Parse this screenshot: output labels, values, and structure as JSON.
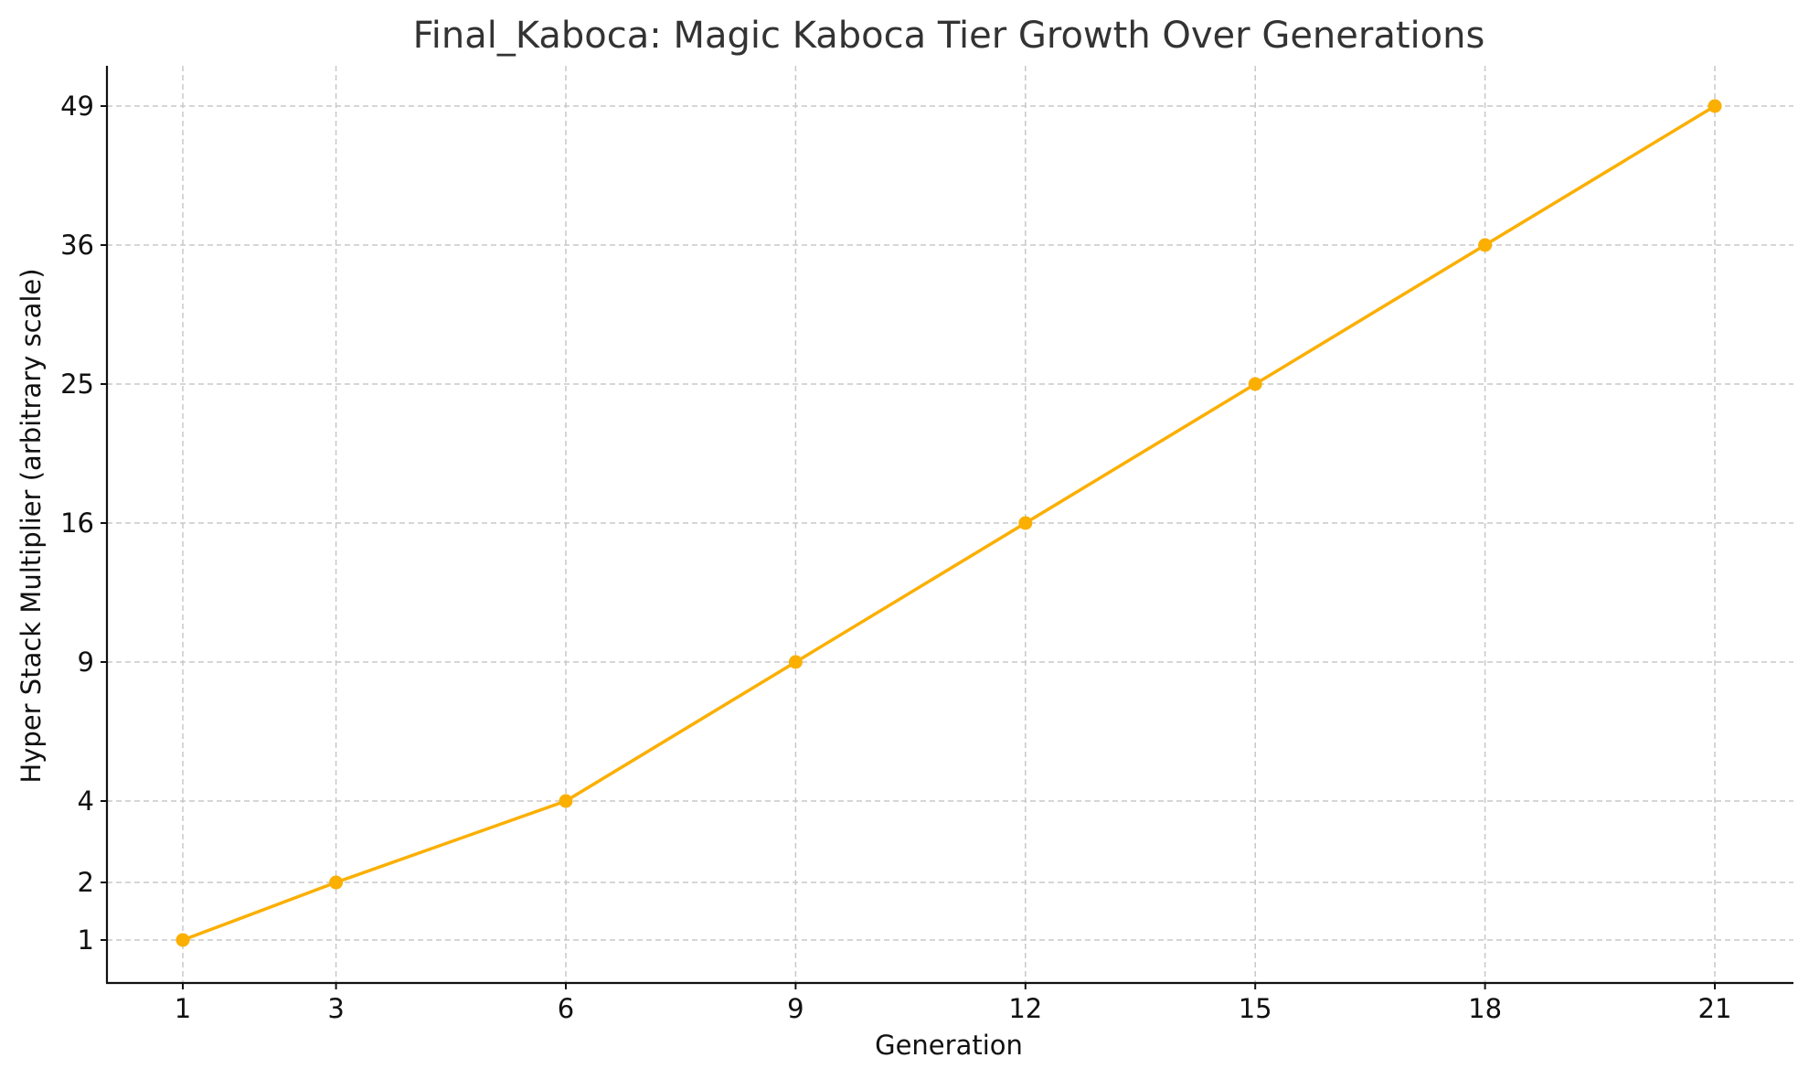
{
  "chart_data": {
    "type": "line",
    "title": "Final_Kaboca: Magic Kaboca Tier Growth Over Generations",
    "xlabel": "Generation",
    "ylabel": "Hyper Stack Multiplier (arbitrary scale)",
    "x": [
      1,
      3,
      6,
      9,
      12,
      15,
      18,
      21
    ],
    "series": [
      {
        "values": [
          1,
          2,
          4,
          9,
          16,
          25,
          36,
          49
        ],
        "color": "#FBAF00"
      }
    ],
    "xticks": [
      1,
      3,
      6,
      9,
      12,
      15,
      18,
      21
    ],
    "yticks": [
      1,
      2,
      4,
      9,
      16,
      25,
      36,
      49
    ],
    "y_scale": "sqrt",
    "xlim": [
      0,
      22.5
    ],
    "ylim": [
      0.45,
      51
    ],
    "grid": true,
    "marker": "circle"
  }
}
